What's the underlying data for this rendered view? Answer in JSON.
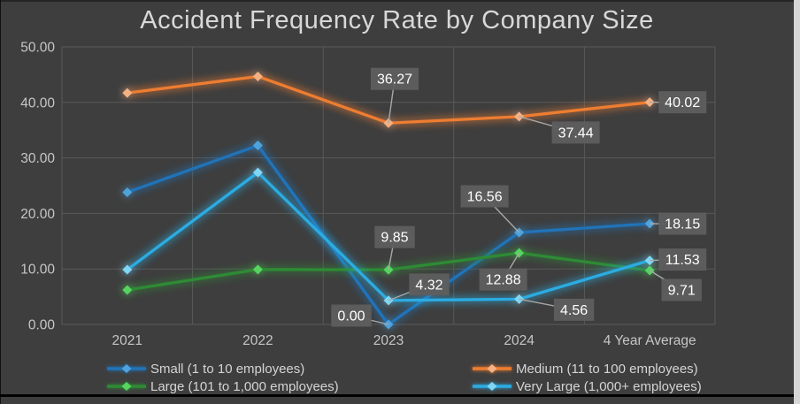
{
  "window": {
    "background_color": "#3E3E3E",
    "right_strip_color": "#D6D6D6",
    "bottom_border_color": "#000000"
  },
  "chart": {
    "title_color": "#D8D8D8",
    "gridline_color": "#595959",
    "axis_text_color": "#C6C6C6",
    "label_box_color": "#5E5E5E",
    "label_text_color": "#FFFFFF",
    "leader_line_color": "#A8A8A8"
  },
  "chart_data": {
    "type": "line",
    "title": "Accident Frequency Rate by Company Size",
    "categories": [
      "2021",
      "2022",
      "2023",
      "2024",
      "4 Year Average"
    ],
    "y_axis": {
      "min": 0,
      "max": 50,
      "step": 10,
      "ticks": [
        "50.00",
        "40.00",
        "30.00",
        "20.00",
        "10.00",
        "0.00"
      ],
      "grid": true
    },
    "x_axis": {
      "grid": true
    },
    "legend_position": "bottom",
    "series": [
      {
        "key": "small",
        "name": "Small (1 to 10 employees)",
        "color": "#2173B8",
        "marker_color": "#4FA3DC",
        "values": [
          23.8,
          32.24,
          0.0,
          16.56,
          18.15
        ],
        "data_labels": [
          null,
          null,
          "0.00",
          "16.56",
          "18.15"
        ]
      },
      {
        "key": "medium",
        "name": "Medium (11 to 100 employees)",
        "color": "#ED7D31",
        "marker_color": "#F4B183",
        "values": [
          41.7,
          44.67,
          36.27,
          37.44,
          40.02
        ],
        "data_labels": [
          null,
          null,
          "36.27",
          "37.44",
          "40.02"
        ]
      },
      {
        "key": "large",
        "name": "Large (101 to 1,000 employees)",
        "color": "#2E8B35",
        "marker_color": "#55D45F",
        "values": [
          6.21,
          9.9,
          9.85,
          12.88,
          9.71
        ],
        "data_labels": [
          null,
          null,
          "9.85",
          "12.88",
          "9.71"
        ]
      },
      {
        "key": "very-large",
        "name": "Very Large (1,000+ employees)",
        "color": "#2BACE2",
        "marker_color": "#7FD6F5",
        "values": [
          9.87,
          27.37,
          4.32,
          4.56,
          11.53
        ],
        "data_labels": [
          null,
          null,
          "4.32",
          "4.56",
          "11.53"
        ]
      }
    ]
  }
}
